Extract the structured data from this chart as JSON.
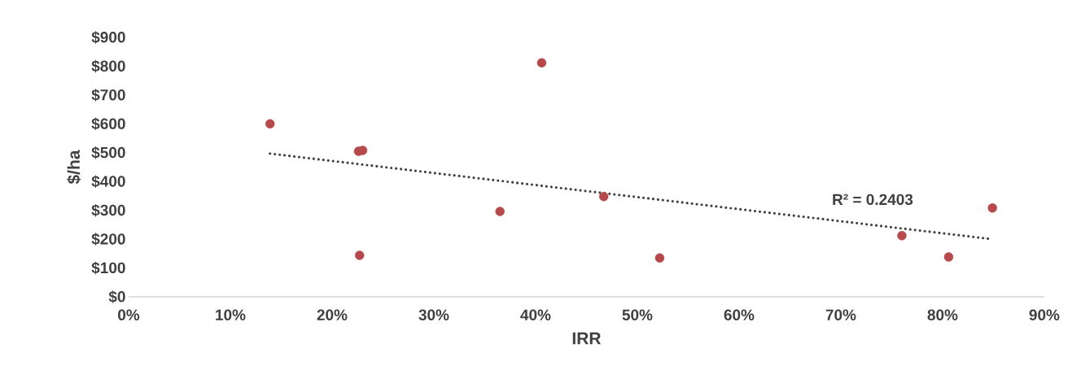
{
  "chart_data": {
    "type": "scatter",
    "xlabel": "IRR",
    "ylabel": "$/ha",
    "series": [
      {
        "color": "#b5494b",
        "x": [
          13.9,
          22.6,
          23.0,
          22.7,
          40.6,
          36.5,
          46.7,
          52.2,
          76.0,
          80.6,
          84.9
        ],
        "values": [
          600,
          505,
          508,
          144,
          812,
          296,
          348,
          135,
          212,
          138,
          308
        ]
      },
      {
        "type": "line",
        "marker": "none",
        "color": "#404040",
        "line_style": "dotted",
        "x": [
          13.9,
          84.9
        ],
        "values": [
          497,
          200
        ]
      }
    ],
    "marker": "circle",
    "annotations": [
      "R² = 0.2403"
    ],
    "xlim": [
      0,
      90
    ],
    "xticks": [
      {
        "value": 0,
        "label": "0%"
      },
      {
        "value": 10,
        "label": "10%"
      },
      {
        "value": 20,
        "label": "20%"
      },
      {
        "value": 30,
        "label": "30%"
      },
      {
        "value": 40,
        "label": "40%"
      },
      {
        "value": 50,
        "label": "50%"
      },
      {
        "value": 60,
        "label": "60%"
      },
      {
        "value": 70,
        "label": "70%"
      },
      {
        "value": 80,
        "label": "80%"
      },
      {
        "value": 90,
        "label": "90%"
      }
    ],
    "ylim": [
      0,
      900
    ],
    "yticks": [
      {
        "value": 0,
        "label": "$0"
      },
      {
        "value": 100,
        "label": "$100"
      },
      {
        "value": 200,
        "label": "$200"
      },
      {
        "value": 300,
        "label": "$300"
      },
      {
        "value": 400,
        "label": "$400"
      },
      {
        "value": 500,
        "label": "$500"
      },
      {
        "value": 600,
        "label": "$600"
      },
      {
        "value": 700,
        "label": "$700"
      },
      {
        "value": 800,
        "label": "$800"
      },
      {
        "value": 900,
        "label": "$900"
      }
    ]
  }
}
